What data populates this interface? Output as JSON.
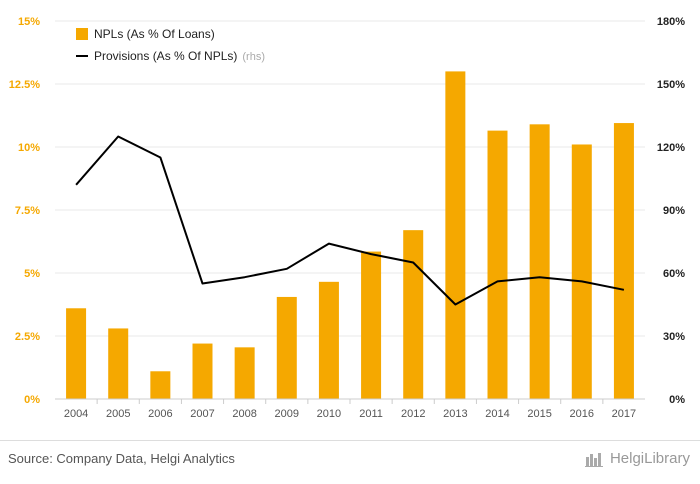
{
  "chart_data": {
    "type": "bar",
    "categories": [
      "2004",
      "2005",
      "2006",
      "2007",
      "2008",
      "2009",
      "2010",
      "2011",
      "2012",
      "2013",
      "2014",
      "2015",
      "2016",
      "2017"
    ],
    "series": [
      {
        "name": "NPLs (As % Of Loans)",
        "type": "bar",
        "axis": "left",
        "values": [
          3.6,
          2.8,
          1.1,
          2.2,
          2.05,
          4.05,
          4.65,
          5.85,
          6.7,
          13.0,
          10.65,
          10.9,
          10.1,
          10.95
        ]
      },
      {
        "name": "Provisions (As % Of NPLs)",
        "type": "line",
        "axis": "right",
        "values": [
          102,
          125,
          115,
          55,
          58,
          62,
          74,
          69,
          65,
          45,
          56,
          58,
          56,
          52
        ]
      }
    ],
    "yleft": {
      "range": [
        0,
        15
      ],
      "ticks": [
        0,
        2.5,
        5,
        7.5,
        10,
        12.5,
        15
      ],
      "tick_labels": [
        "0%",
        "2.5%",
        "5%",
        "7.5%",
        "10%",
        "12.5%",
        "15%"
      ]
    },
    "yright": {
      "range": [
        0,
        180
      ],
      "ticks": [
        0,
        30,
        60,
        90,
        120,
        150,
        180
      ],
      "tick_labels": [
        "0%",
        "30%",
        "60%",
        "90%",
        "120%",
        "150%",
        "180%"
      ]
    },
    "legend": {
      "placement": "top-left",
      "items": [
        "NPLs (As % Of Loans)",
        "Provisions (As % Of NPLs)"
      ],
      "rhs_note": "(rhs)"
    },
    "grid": true,
    "colors": {
      "bar": "#f5a800",
      "line": "#000000",
      "grid": "#e8e8e8"
    }
  },
  "footer": {
    "source": "Source: Company Data, Helgi Analytics",
    "brand": "HelgiLibrary"
  }
}
